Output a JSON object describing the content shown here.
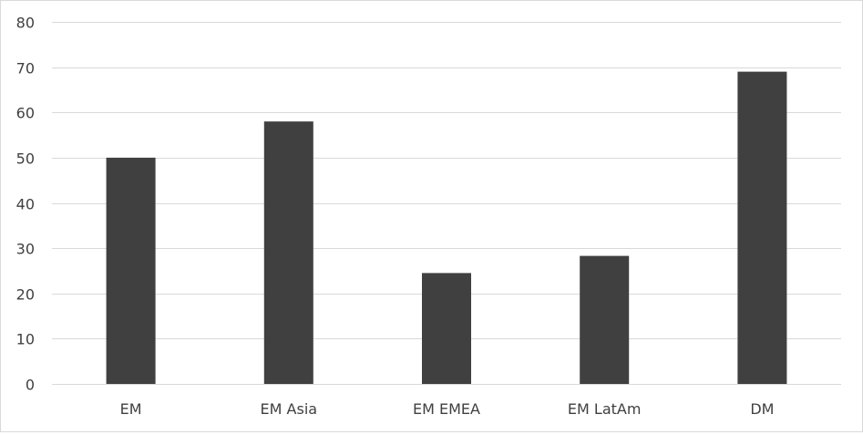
{
  "chart_data": {
    "type": "bar",
    "title": "",
    "xlabel": "",
    "ylabel": "",
    "categories": [
      "EM",
      "EM Asia",
      "EM EMEA",
      "EM LatAm",
      "DM"
    ],
    "values": [
      50,
      58,
      24.5,
      28.3,
      69
    ],
    "ylim": [
      0,
      80
    ],
    "yticks": [
      0,
      10,
      20,
      30,
      40,
      50,
      60,
      70,
      80
    ],
    "ytick_labels": [
      "0",
      "10",
      "20",
      "30",
      "40",
      "50",
      "60",
      "70",
      "80"
    ],
    "grid": true,
    "legend": "none",
    "colors": {
      "bar": "#404040",
      "grid": "#d9d9d9",
      "text": "#404040",
      "border": "#d9d9d9"
    }
  }
}
